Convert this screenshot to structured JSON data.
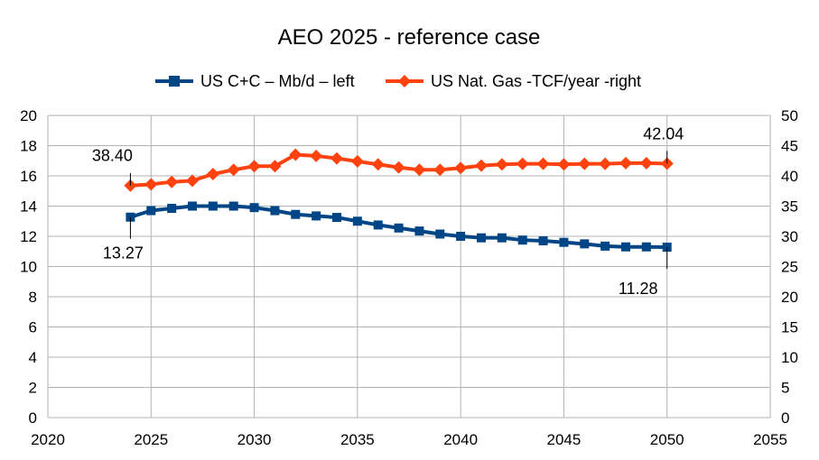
{
  "chart_data": {
    "type": "line",
    "title": "AEO 2025 - reference case",
    "xlim": [
      2020,
      2055
    ],
    "x_ticks": [
      2020,
      2025,
      2030,
      2035,
      2040,
      2045,
      2050,
      2055
    ],
    "y_left": {
      "lim": [
        0,
        20
      ],
      "ticks": [
        0,
        2,
        4,
        6,
        8,
        10,
        12,
        14,
        16,
        18,
        20
      ]
    },
    "y_right": {
      "lim": [
        0,
        50
      ],
      "ticks": [
        0,
        5,
        10,
        15,
        20,
        25,
        30,
        35,
        40,
        45,
        50
      ]
    },
    "grid": "horizontal and vertical",
    "legend_position": "top",
    "x": [
      2024,
      2025,
      2026,
      2027,
      2028,
      2029,
      2030,
      2031,
      2032,
      2033,
      2034,
      2035,
      2036,
      2037,
      2038,
      2039,
      2040,
      2041,
      2042,
      2043,
      2044,
      2045,
      2046,
      2047,
      2048,
      2049,
      2050
    ],
    "series": [
      {
        "name": "US C+C – Mb/d – left",
        "axis": "left",
        "color": "#004586",
        "marker": "square",
        "values": [
          13.27,
          13.7,
          13.85,
          14.0,
          14.0,
          14.0,
          13.9,
          13.7,
          13.45,
          13.35,
          13.25,
          13.0,
          12.75,
          12.55,
          12.35,
          12.15,
          12.0,
          11.9,
          11.9,
          11.75,
          11.7,
          11.6,
          11.5,
          11.35,
          11.3,
          11.3,
          11.28
        ]
      },
      {
        "name": "US Nat. Gas -TCF/year -right",
        "axis": "right",
        "color": "#ff420e",
        "marker": "diamond",
        "values": [
          38.4,
          38.6,
          39.0,
          39.2,
          40.3,
          41.0,
          41.6,
          41.6,
          43.5,
          43.3,
          42.9,
          42.4,
          41.9,
          41.4,
          41.0,
          41.0,
          41.3,
          41.7,
          41.9,
          42.0,
          42.0,
          41.9,
          42.0,
          42.0,
          42.1,
          42.1,
          42.04
        ]
      }
    ],
    "annotations": [
      {
        "text": "38.40",
        "x": 2024,
        "series": 1
      },
      {
        "text": "42.04",
        "x": 2050,
        "series": 1
      },
      {
        "text": "13.27",
        "x": 2024,
        "series": 0
      },
      {
        "text": "11.28",
        "x": 2050,
        "series": 0
      }
    ]
  }
}
